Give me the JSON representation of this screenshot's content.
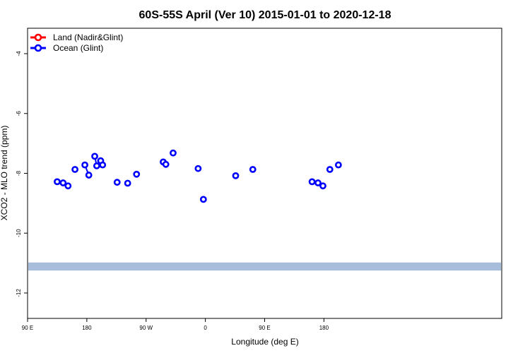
{
  "chart_data": {
    "type": "scatter",
    "title": "60S-55S April (Ver 10)   2015-01-01 to 2020-12-18",
    "xlabel": "Longitude (deg E)",
    "ylabel": "XCO2 - MLO trend (ppm)",
    "xlim": [
      90,
      450
    ],
    "ylim": [
      -12.85,
      -3.15
    ],
    "x_ticks": [
      {
        "value": 90,
        "label": "90 E"
      },
      {
        "value": 180,
        "label": "180"
      },
      {
        "value": 270,
        "label": "90 W"
      },
      {
        "value": 360,
        "label": "0"
      },
      {
        "value": 450,
        "label": "90 E"
      },
      {
        "value": 540,
        "label": "180"
      }
    ],
    "y_ticks": [
      {
        "value": -4,
        "label": "-4"
      },
      {
        "value": -6,
        "label": "-6"
      },
      {
        "value": -8,
        "label": "-8"
      },
      {
        "value": -10,
        "label": "-10"
      },
      {
        "value": -12,
        "label": "-12"
      }
    ],
    "legend_placement": "top-left",
    "grid": false,
    "series": [
      {
        "name": "Land (Nadir&Glint)",
        "color": "#ff0000",
        "segments": []
      },
      {
        "name": "Ocean (Glint)",
        "color": "#0000ff",
        "segments": [
          {
            "x": [
              135,
              144,
              151.5
            ],
            "y": [
              -8.28,
              -8.32,
              -8.42
            ]
          },
          {
            "x": [
              162
            ],
            "y": [
              -7.87
            ]
          },
          {
            "x": [
              177,
              183
            ],
            "y": [
              -7.72,
              -8.06
            ]
          },
          {
            "x": [
              192,
              195,
              201,
              204
            ],
            "y": [
              -7.43,
              -7.75,
              -7.58,
              -7.72
            ]
          },
          {
            "x": [
              226
            ],
            "y": [
              -8.3
            ]
          },
          {
            "x": [
              242
            ],
            "y": [
              -8.33
            ]
          },
          {
            "x": [
              255.5
            ],
            "y": [
              -8.03
            ]
          },
          {
            "x": [
              296,
              300
            ],
            "y": [
              -7.62,
              -7.7
            ]
          },
          {
            "x": [
              311
            ],
            "y": [
              -7.32
            ]
          },
          {
            "x": [
              349
            ],
            "y": [
              -7.84
            ]
          },
          {
            "x": [
              357
            ],
            "y": [
              -8.87
            ]
          },
          {
            "x": [
              406
            ],
            "y": [
              -8.08
            ]
          },
          {
            "x": [
              432
            ],
            "y": [
              -7.87
            ]
          },
          {
            "x": [
              522,
              531,
              538.5
            ],
            "y": [
              -8.28,
              -8.32,
              -8.42
            ]
          },
          {
            "x": [
              549
            ],
            "y": [
              -7.87
            ]
          },
          {
            "x": [
              562
            ],
            "y": [
              -7.72
            ]
          }
        ]
      }
    ],
    "band": {
      "y_from": -11.25,
      "y_to": -10.98,
      "color": "#a6bddb"
    }
  }
}
